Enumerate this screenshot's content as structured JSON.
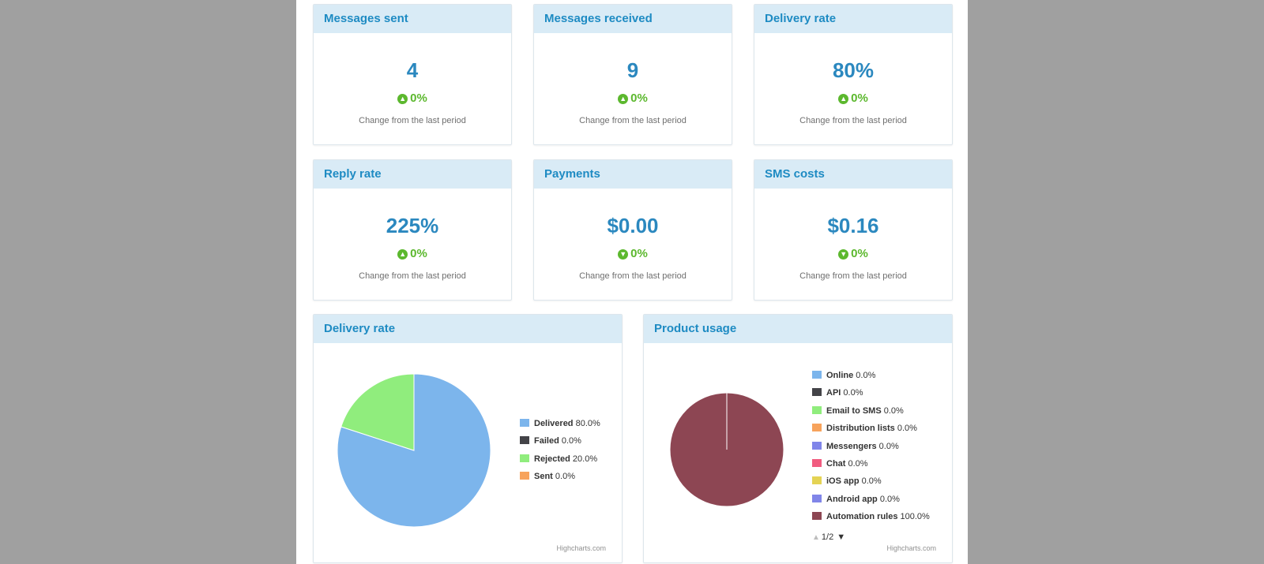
{
  "stats": [
    {
      "title": "Messages sent",
      "value": "4",
      "change": "0%",
      "direction": "up",
      "note": "Change from the last period"
    },
    {
      "title": "Messages received",
      "value": "9",
      "change": "0%",
      "direction": "up",
      "note": "Change from the last period"
    },
    {
      "title": "Delivery rate",
      "value": "80%",
      "change": "0%",
      "direction": "up",
      "note": "Change from the last period"
    },
    {
      "title": "Reply rate",
      "value": "225%",
      "change": "0%",
      "direction": "up",
      "note": "Change from the last period"
    },
    {
      "title": "Payments",
      "value": "$0.00",
      "change": "0%",
      "direction": "down",
      "note": "Change from the last period"
    },
    {
      "title": "SMS costs",
      "value": "$0.16",
      "change": "0%",
      "direction": "down",
      "note": "Change from the last period"
    }
  ],
  "delivery_chart": {
    "title": "Delivery rate",
    "credits": "Highcharts.com",
    "slices": [
      {
        "name": "Delivered",
        "label": "80.0%",
        "value": 80,
        "color": "#7cb5ec"
      },
      {
        "name": "Failed",
        "label": "0.0%",
        "value": 0,
        "color": "#434348"
      },
      {
        "name": "Rejected",
        "label": "20.0%",
        "value": 20,
        "color": "#90ed7d"
      },
      {
        "name": "Sent",
        "label": "0.0%",
        "value": 0,
        "color": "#f7a35c"
      }
    ]
  },
  "usage_chart": {
    "title": "Product usage",
    "credits": "Highcharts.com",
    "pager": "1/2",
    "slices": [
      {
        "name": "Online",
        "label": "0.0%",
        "value": 0,
        "color": "#7cb5ec"
      },
      {
        "name": "API",
        "label": "0.0%",
        "value": 0,
        "color": "#434348"
      },
      {
        "name": "Email to SMS",
        "label": "0.0%",
        "value": 0,
        "color": "#90ed7d"
      },
      {
        "name": "Distribution lists",
        "label": "0.0%",
        "value": 0,
        "color": "#f7a35c"
      },
      {
        "name": "Messengers",
        "label": "0.0%",
        "value": 0,
        "color": "#8085e9"
      },
      {
        "name": "Chat",
        "label": "0.0%",
        "value": 0,
        "color": "#f15c80"
      },
      {
        "name": "iOS app",
        "label": "0.0%",
        "value": 0,
        "color": "#e4d354"
      },
      {
        "name": "Android app",
        "label": "0.0%",
        "value": 0,
        "color": "#8085e8"
      },
      {
        "name": "Automation rules",
        "label": "100.0%",
        "value": 100,
        "color": "#8d4653"
      }
    ]
  },
  "chart_data": [
    {
      "type": "pie",
      "title": "Delivery rate",
      "categories": [
        "Delivered",
        "Failed",
        "Rejected",
        "Sent"
      ],
      "values": [
        80,
        0,
        20,
        0
      ],
      "legend": "right"
    },
    {
      "type": "pie",
      "title": "Product usage",
      "categories": [
        "Online",
        "API",
        "Email to SMS",
        "Distribution lists",
        "Messengers",
        "Chat",
        "iOS app",
        "Android app",
        "Automation rules"
      ],
      "values": [
        0,
        0,
        0,
        0,
        0,
        0,
        0,
        0,
        100
      ],
      "legend": "right"
    }
  ]
}
